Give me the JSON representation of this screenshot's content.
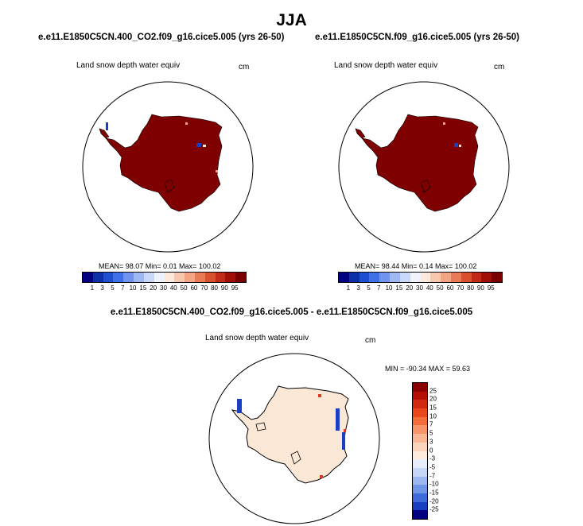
{
  "figure": {
    "season": "JJA"
  },
  "panels": [
    {
      "title": "e.e11.E1850C5CN.400_CO2.f09_g16.cice5.005 (yrs 26-50)",
      "variable": "Land snow depth water equiv",
      "units": "cm",
      "stats": "MEAN=  98.07  Min=   0.01  Max= 100.02"
    },
    {
      "title": "e.e11.E1850C5CN.f09_g16.cice5.005 (yrs 26-50)",
      "variable": "Land snow depth water equiv",
      "units": "cm",
      "stats": "MEAN=  98.44  Min=   0.14  Max= 100.02"
    },
    {
      "title": "e.e11.E1850C5CN.400_CO2.f09_g16.cice5.005 - e.e11.E1850C5CN.f09_g16.cice5.005",
      "variable": "Land snow depth water equiv",
      "units": "cm",
      "stats": "MIN = -90.34 MAX =  59.63"
    }
  ],
  "abs_colorbar": {
    "labels": [
      "1",
      "3",
      "5",
      "7",
      "10",
      "15",
      "20",
      "30",
      "40",
      "50",
      "60",
      "70",
      "80",
      "90",
      "95"
    ],
    "colors": [
      "#000080",
      "#0a2fa6",
      "#1f4fd0",
      "#3f6fe6",
      "#6f93ee",
      "#9fb8f4",
      "#c9d8fa",
      "#eef3fd",
      "#fde8dc",
      "#f8c8ae",
      "#f3a482",
      "#e97a56",
      "#d9502f",
      "#c12a16",
      "#a10e05",
      "#7a0000"
    ]
  },
  "diff_colorbar": {
    "labels": [
      "25",
      "20",
      "15",
      "10",
      "7",
      "5",
      "3",
      "0",
      "-3",
      "-5",
      "-7",
      "-10",
      "-15",
      "-20",
      "-25"
    ],
    "colors": [
      "#8b0000",
      "#b40e05",
      "#d22a10",
      "#e8481c",
      "#f26c3c",
      "#f7956a",
      "#f9b796",
      "#fbd4bd",
      "#fdebdd",
      "#e6eefc",
      "#c7d6f6",
      "#9db8ef",
      "#7096e6",
      "#3e6bd8",
      "#173fc0",
      "#000080"
    ]
  },
  "map_colors": {
    "abs_land": "#7f0000",
    "diff_land": "#fbe7d6",
    "diff_pos": "#d93a20",
    "diff_neg": "#1a3fc4",
    "coast": "#000000"
  }
}
